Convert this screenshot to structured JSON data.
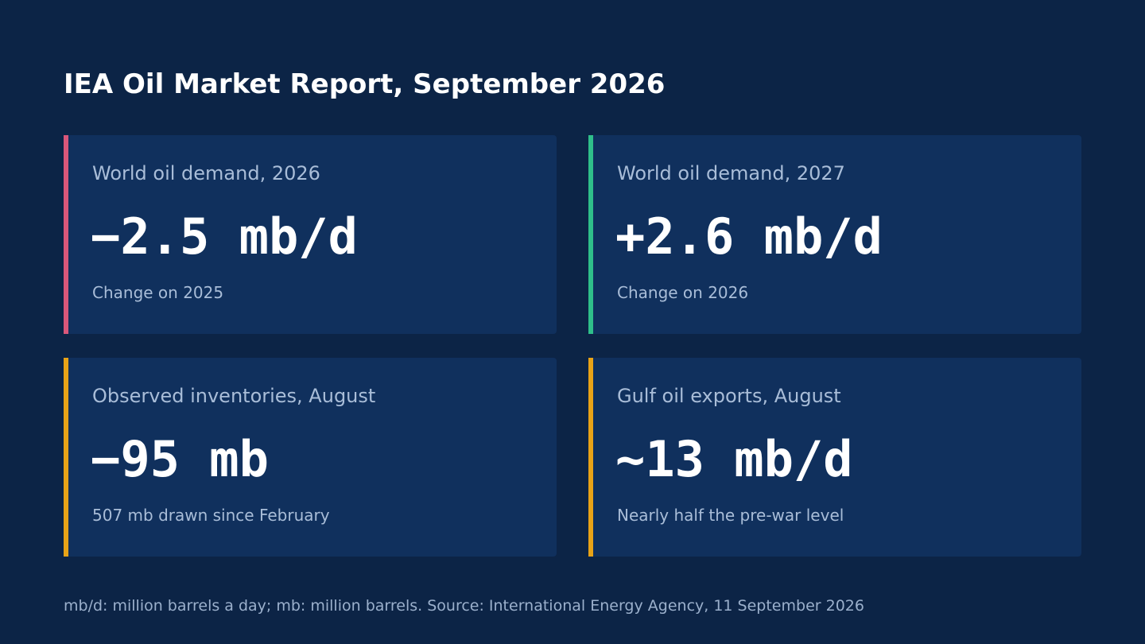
{
  "title": "IEA Oil Market Report, September 2026",
  "colors": {
    "background": "#0c2446",
    "card": "#10305d",
    "accent_negative": "#d9577a",
    "accent_positive": "#2fbf8a",
    "accent_warning": "#e8a317"
  },
  "cards": [
    {
      "label": "World oil demand, 2026",
      "value": "−2.5 mb/d",
      "note": "Change on 2025",
      "accent": "#d9577a"
    },
    {
      "label": "World oil demand, 2027",
      "value": "+2.6 mb/d",
      "note": "Change on 2026",
      "accent": "#2fbf8a"
    },
    {
      "label": "Observed inventories, August",
      "value": "−95 mb",
      "note": "507 mb drawn since February",
      "accent": "#e8a317"
    },
    {
      "label": "Gulf oil exports, August",
      "value": "~13 mb/d",
      "note": "Nearly half the pre-war level",
      "accent": "#e8a317"
    }
  ],
  "footnote": "mb/d: million barrels a day; mb: million barrels. Source: International Energy Agency, 11 September 2026"
}
